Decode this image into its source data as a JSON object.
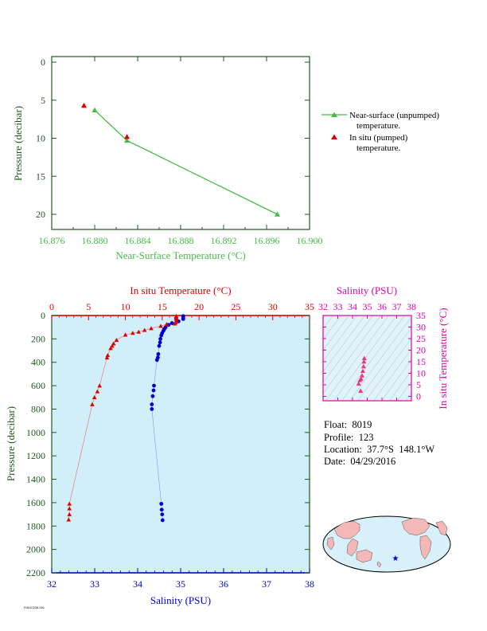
{
  "colors": {
    "surface_line": "#44bb44",
    "insitu_temp": "#dd0000",
    "salinity": "#0000cc",
    "ts_axis": "#dd00aa",
    "ts_points": "#ee3388",
    "plot_bg": "#d2eef8",
    "ts_bg": "#e3f2f8",
    "ocean": "#d8f0fa",
    "land": "#f5b8b8",
    "axis_dark": "#1e5a1e",
    "frame_pink": "#dd00aa"
  },
  "chart_data": [
    {
      "id": "near_surface",
      "type": "line",
      "xlabel": "Near-Surface Temperature (°C)",
      "ylabel": "Pressure (decibar)",
      "xlim": [
        16.876,
        16.9
      ],
      "ylim": [
        0,
        22
      ],
      "y_inverted": true,
      "xticks": [
        "16.876",
        "16.880",
        "16.884",
        "16.888",
        "16.892",
        "16.896",
        "16.900"
      ],
      "yticks": [
        "0",
        "5",
        "10",
        "15",
        "20"
      ],
      "legend_placement": "right",
      "series": [
        {
          "name": "Near-surface (unpumped) temperature.",
          "legend_line1": "Near-surface (unpumped)",
          "legend_line2": "temperature.",
          "marker": "triangle",
          "connected": true,
          "points": [
            [
              16.88,
              6.3
            ],
            [
              16.883,
              10.3
            ],
            [
              16.897,
              20.0
            ]
          ]
        },
        {
          "name": "In situ (pumped) temperature.",
          "legend_line1": "In situ (pumped)",
          "legend_line2": "temperature.",
          "marker": "triangle",
          "connected": false,
          "points": [
            [
              16.879,
              5.7
            ],
            [
              16.883,
              9.8
            ]
          ]
        }
      ]
    },
    {
      "id": "profile",
      "type": "scatter",
      "ylabel": "Pressure (decibar)",
      "ylim": [
        0,
        2200
      ],
      "y_inverted": true,
      "yticks": [
        "0",
        "200",
        "400",
        "600",
        "800",
        "1000",
        "1200",
        "1400",
        "1600",
        "1800",
        "2000",
        "2200"
      ],
      "top_axis": {
        "label": "In situ Temperature (°C)",
        "lim": [
          0,
          35
        ],
        "ticks": [
          "0",
          "5",
          "10",
          "15",
          "20",
          "25",
          "30",
          "35"
        ]
      },
      "bottom_axis": {
        "label": "Salinity (PSU)",
        "lim": [
          32,
          38
        ],
        "ticks": [
          "32",
          "33",
          "34",
          "35",
          "36",
          "37",
          "38"
        ]
      },
      "series": [
        {
          "name": "In situ Temperature",
          "axis": "top",
          "marker": "triangle",
          "points": [
            [
              16.9,
              5
            ],
            [
              16.9,
              10
            ],
            [
              16.9,
              20
            ],
            [
              16.9,
              30
            ],
            [
              16.9,
              50
            ],
            [
              16.8,
              60
            ],
            [
              16.7,
              70
            ],
            [
              15.6,
              75
            ],
            [
              14.8,
              90
            ],
            [
              13.5,
              110
            ],
            [
              12.6,
              125
            ],
            [
              11.8,
              140
            ],
            [
              11.0,
              150
            ],
            [
              10.0,
              165
            ],
            [
              8.8,
              210
            ],
            [
              8.4,
              240
            ],
            [
              8.2,
              260
            ],
            [
              8.0,
              280
            ],
            [
              7.6,
              340
            ],
            [
              7.5,
              360
            ],
            [
              6.5,
              600
            ],
            [
              6.2,
              650
            ],
            [
              5.8,
              700
            ],
            [
              5.5,
              760
            ],
            [
              2.4,
              1610
            ],
            [
              2.4,
              1650
            ],
            [
              2.4,
              1700
            ],
            [
              2.3,
              1745
            ]
          ]
        },
        {
          "name": "Salinity",
          "axis": "bottom",
          "marker": "circle",
          "points": [
            [
              35.06,
              5
            ],
            [
              35.06,
              10
            ],
            [
              35.06,
              20
            ],
            [
              35.06,
              30
            ],
            [
              34.95,
              50
            ],
            [
              34.8,
              65
            ],
            [
              34.72,
              80
            ],
            [
              34.65,
              100
            ],
            [
              34.62,
              115
            ],
            [
              34.6,
              130
            ],
            [
              34.57,
              150
            ],
            [
              34.55,
              170
            ],
            [
              34.53,
              200
            ],
            [
              34.52,
              230
            ],
            [
              34.5,
              260
            ],
            [
              34.48,
              330
            ],
            [
              34.47,
              360
            ],
            [
              34.45,
              380
            ],
            [
              34.38,
              600
            ],
            [
              34.37,
              640
            ],
            [
              34.35,
              690
            ],
            [
              34.33,
              760
            ],
            [
              34.33,
              800
            ],
            [
              34.55,
              1610
            ],
            [
              34.56,
              1660
            ],
            [
              34.57,
              1700
            ],
            [
              34.58,
              1750
            ]
          ]
        }
      ]
    },
    {
      "id": "ts_diagram",
      "type": "scatter",
      "xlabel": "Salinity (PSU)",
      "ylabel": "In situ Temperature (°C)",
      "xlim": [
        32,
        38
      ],
      "ylim": [
        -2,
        35
      ],
      "xticks": [
        "32",
        "33",
        "34",
        "35",
        "36",
        "37",
        "38"
      ],
      "yticks": [
        "0",
        "5",
        "10",
        "15",
        "20",
        "25",
        "30",
        "35"
      ],
      "points": [
        [
          34.8,
          16.5
        ],
        [
          34.78,
          15.0
        ],
        [
          34.75,
          13.0
        ],
        [
          34.7,
          11.0
        ],
        [
          34.65,
          9.0
        ],
        [
          34.58,
          7.6
        ],
        [
          34.5,
          7.0
        ],
        [
          34.42,
          5.5
        ],
        [
          34.55,
          2.4
        ]
      ]
    }
  ],
  "float_info": {
    "float_line": "Float:  8019",
    "profile_line": "Profile:  123",
    "location_line": "Location:  37.7°S  148.1°W",
    "date_line": "Date:  04/29/2016"
  },
  "footer_text": "P4010239.001"
}
